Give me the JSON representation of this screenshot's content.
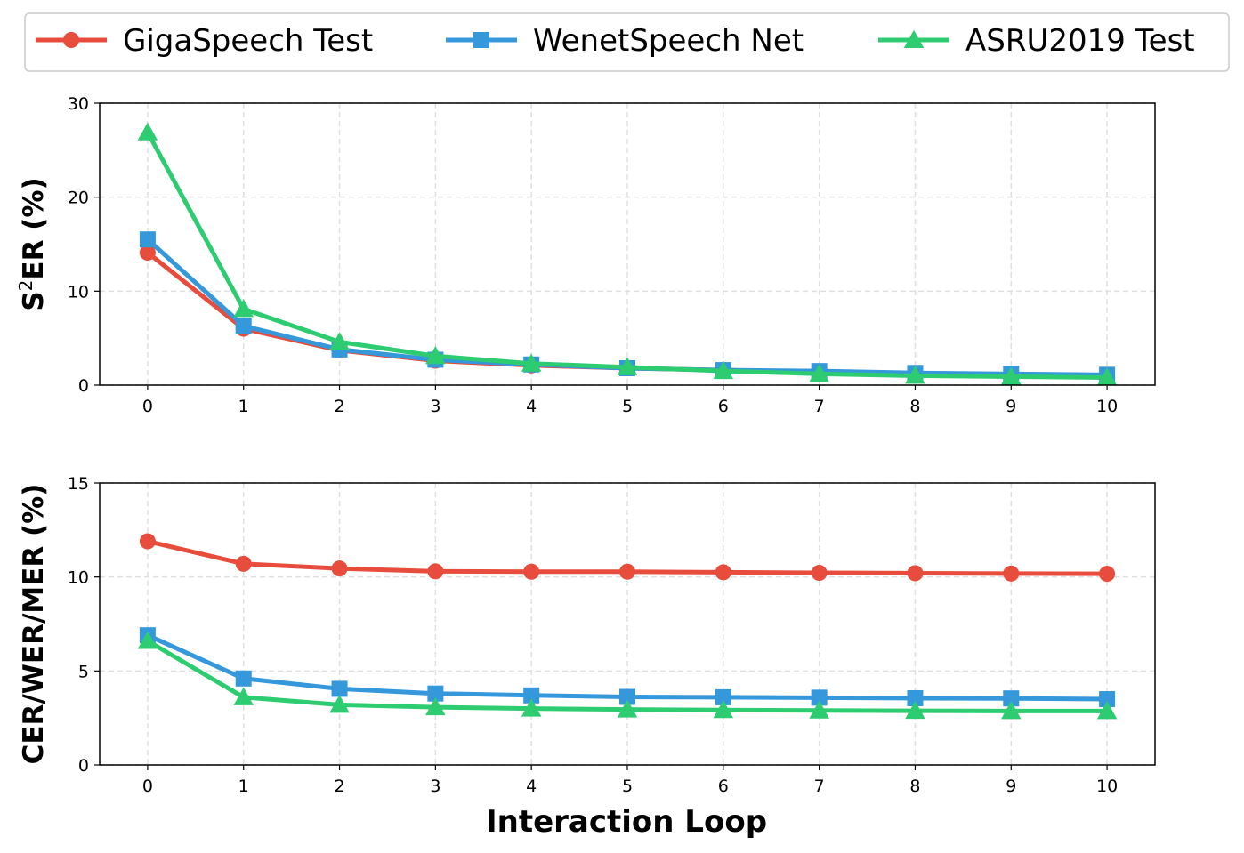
{
  "chart_data": [
    {
      "type": "line",
      "ylabel": "S²ER (%)",
      "ylabel_base": "S",
      "ylabel_sup": "2",
      "ylabel_rest": "ER (%)",
      "xlabel": "",
      "x": [
        0,
        1,
        2,
        3,
        4,
        5,
        6,
        7,
        8,
        9,
        10
      ],
      "xlim": [
        -0.5,
        10.5
      ],
      "ylim": [
        0,
        30
      ],
      "yticks": [
        0,
        10,
        20,
        30
      ],
      "grid": true,
      "series": [
        {
          "name": "GigaSpeech Test",
          "color": "#e74c3c",
          "marker": "circle",
          "values": [
            14.1,
            6.0,
            3.7,
            2.6,
            2.1,
            1.8,
            1.6,
            1.4,
            1.2,
            1.1,
            1.0
          ]
        },
        {
          "name": "WenetSpeech Net",
          "color": "#3498db",
          "marker": "square",
          "values": [
            15.5,
            6.3,
            3.8,
            2.7,
            2.2,
            1.8,
            1.6,
            1.5,
            1.3,
            1.2,
            1.1
          ]
        },
        {
          "name": "ASRU2019 Test",
          "color": "#2ecc71",
          "marker": "triangle",
          "values": [
            26.9,
            8.1,
            4.6,
            3.1,
            2.3,
            1.9,
            1.5,
            1.2,
            1.0,
            0.9,
            0.8
          ]
        }
      ]
    },
    {
      "type": "line",
      "ylabel": "CER/WER/MER (%)",
      "xlabel": "Interaction Loop",
      "x": [
        0,
        1,
        2,
        3,
        4,
        5,
        6,
        7,
        8,
        9,
        10
      ],
      "xlim": [
        -0.5,
        10.5
      ],
      "ylim": [
        0,
        15
      ],
      "yticks": [
        0,
        5,
        10,
        15
      ],
      "grid": true,
      "series": [
        {
          "name": "GigaSpeech Test",
          "color": "#e74c3c",
          "marker": "circle",
          "values": [
            11.9,
            10.7,
            10.45,
            10.3,
            10.28,
            10.28,
            10.25,
            10.22,
            10.2,
            10.18,
            10.17
          ]
        },
        {
          "name": "WenetSpeech Net",
          "color": "#3498db",
          "marker": "square",
          "values": [
            6.9,
            4.6,
            4.05,
            3.8,
            3.7,
            3.62,
            3.6,
            3.58,
            3.55,
            3.54,
            3.5
          ]
        },
        {
          "name": "ASRU2019 Test",
          "color": "#2ecc71",
          "marker": "triangle",
          "values": [
            6.6,
            3.6,
            3.2,
            3.07,
            3.0,
            2.95,
            2.92,
            2.9,
            2.88,
            2.87,
            2.87
          ]
        }
      ]
    }
  ],
  "legend": {
    "placement": "top-center",
    "entries": [
      "GigaSpeech Test",
      "WenetSpeech Net",
      "ASRU2019 Test"
    ]
  }
}
